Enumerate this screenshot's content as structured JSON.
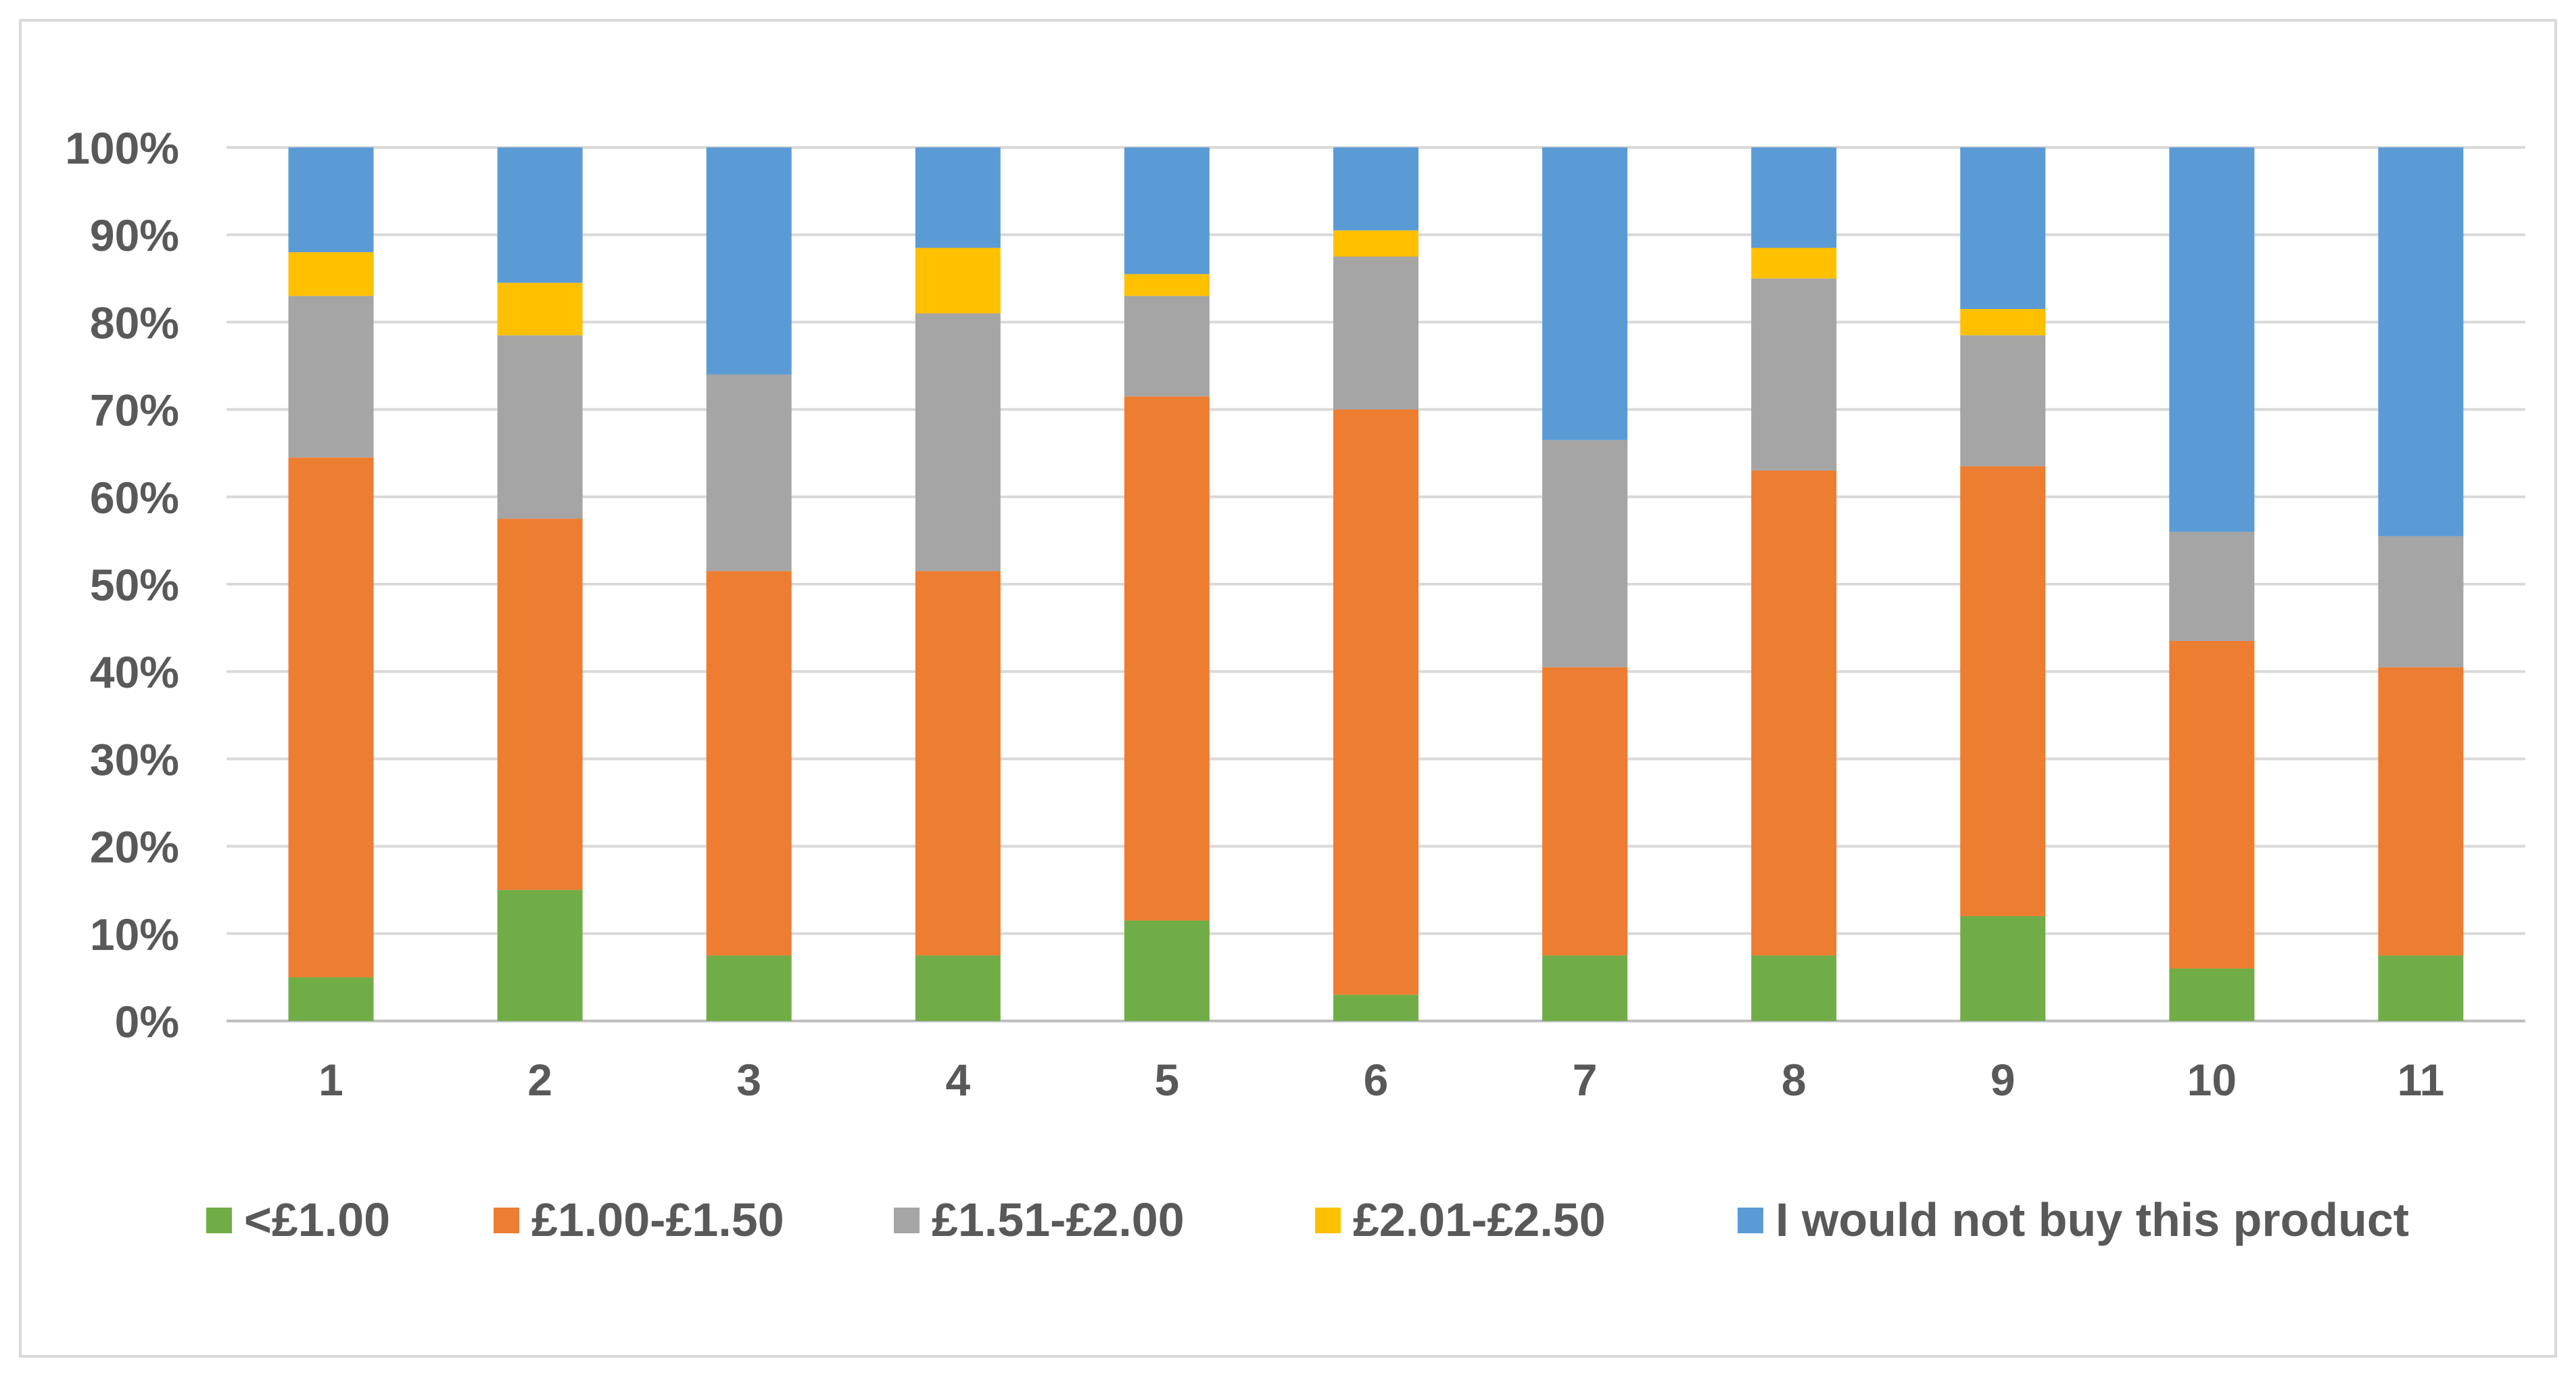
{
  "chart_data": {
    "type": "bar",
    "stacked": true,
    "percent": true,
    "title": "",
    "xlabel": "",
    "ylabel": "",
    "ylim": [
      0,
      100
    ],
    "yticks": [
      "0%",
      "10%",
      "20%",
      "30%",
      "40%",
      "50%",
      "60%",
      "70%",
      "80%",
      "90%",
      "100%"
    ],
    "grid": true,
    "legend_position": "bottom",
    "categories": [
      "1",
      "2",
      "3",
      "4",
      "5",
      "6",
      "7",
      "8",
      "9",
      "10",
      "11"
    ],
    "series": [
      {
        "name": "<£1.00",
        "color": "#70AD47",
        "values": [
          5,
          15,
          7.5,
          7.5,
          11.5,
          3,
          7.5,
          7.5,
          12,
          6,
          7.5
        ]
      },
      {
        "name": "£1.00-£1.50",
        "color": "#ED7D31",
        "values": [
          59.5,
          42.5,
          44,
          44,
          60,
          67,
          33,
          55.5,
          51.5,
          37.5,
          33
        ]
      },
      {
        "name": "£1.51-£2.00",
        "color": "#A5A5A5",
        "values": [
          18.5,
          21,
          22.5,
          29.5,
          11.5,
          17.5,
          26,
          22,
          15,
          12.5,
          15
        ]
      },
      {
        "name": "£2.01-£2.50",
        "color": "#FFC000",
        "values": [
          5,
          6,
          0,
          7.5,
          2.5,
          3,
          0,
          3.5,
          3,
          0,
          0
        ]
      },
      {
        "name": "I would not buy this product",
        "color": "#5B9BD5",
        "values": [
          12,
          15.5,
          26,
          11.5,
          14.5,
          9.5,
          33.5,
          11.5,
          18.5,
          44,
          44.5
        ]
      }
    ]
  }
}
